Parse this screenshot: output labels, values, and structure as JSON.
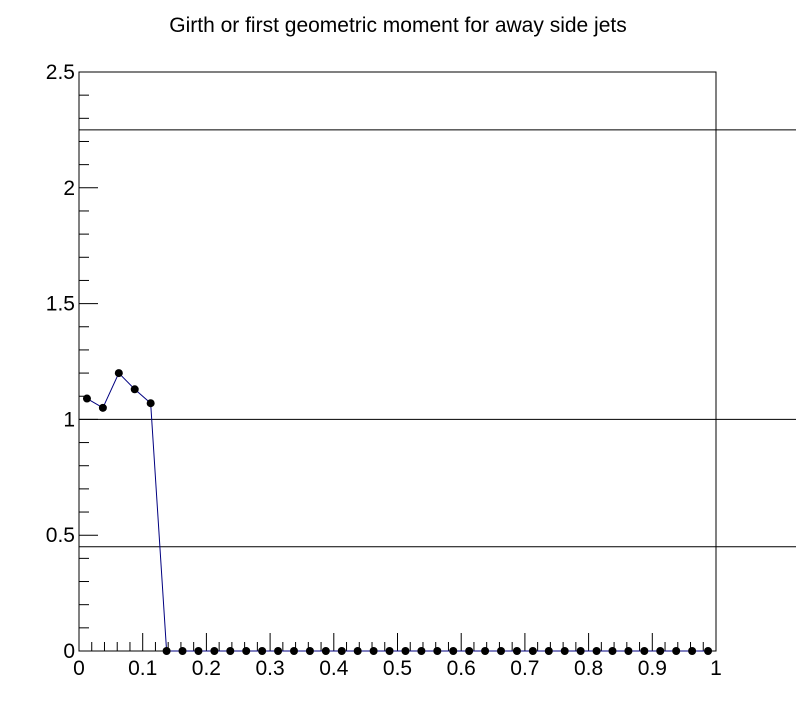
{
  "chart_data": {
    "type": "line",
    "title": "Girth or first geometric moment for away side jets",
    "xlim": [
      0,
      1
    ],
    "ylim": [
      0,
      2.5
    ],
    "x_tick_labels": [
      "0",
      "0.1",
      "0.2",
      "0.3",
      "0.4",
      "0.5",
      "0.6",
      "0.7",
      "0.8",
      "0.9",
      "1"
    ],
    "y_tick_labels": [
      "0",
      "0.5",
      "1",
      "1.5",
      "2",
      "2.5"
    ],
    "reference_lines_y": [
      2.25,
      1.0,
      0.45
    ],
    "grid": false,
    "legend": "none",
    "series": [
      {
        "color": "#000080",
        "marker_color": "#000000",
        "x": [
          0.0125,
          0.0375,
          0.0625,
          0.0875,
          0.1125,
          0.1375,
          0.1625,
          0.1875,
          0.2125,
          0.2375,
          0.2625,
          0.2875,
          0.3125,
          0.3375,
          0.3625,
          0.3875,
          0.4125,
          0.4375,
          0.4625,
          0.4875,
          0.5125,
          0.5375,
          0.5625,
          0.5875,
          0.6125,
          0.6375,
          0.6625,
          0.6875,
          0.7125,
          0.7375,
          0.7625,
          0.7875,
          0.8125,
          0.8375,
          0.8625,
          0.8875,
          0.9125,
          0.9375,
          0.9625,
          0.9875
        ],
        "y": [
          1.09,
          1.05,
          1.2,
          1.13,
          1.07,
          0,
          0,
          0,
          0,
          0,
          0,
          0,
          0,
          0,
          0,
          0,
          0,
          0,
          0,
          0,
          0,
          0,
          0,
          0,
          0,
          0,
          0,
          0,
          0,
          0,
          0,
          0,
          0,
          0,
          0,
          0,
          0,
          0,
          0,
          0
        ]
      }
    ]
  }
}
